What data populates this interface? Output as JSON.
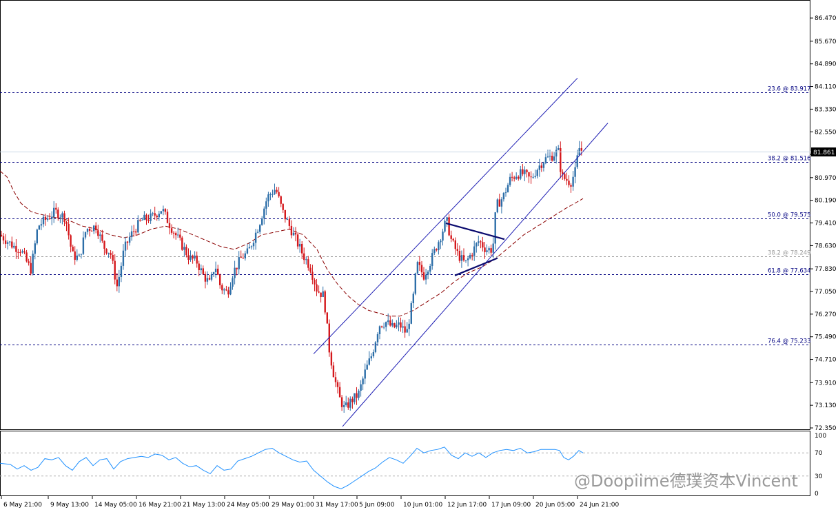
{
  "chart_data": {
    "type": "candlestick",
    "ylim": [
      72.35,
      86.9
    ],
    "y_ticks": [
      "86.470",
      "85.670",
      "84.890",
      "84.110",
      "83.330",
      "82.550",
      "81.770",
      "80.970",
      "80.190",
      "79.410",
      "78.630",
      "77.830",
      "77.050",
      "76.270",
      "75.490",
      "74.710",
      "73.910",
      "73.130",
      "72.350"
    ],
    "x_labels": [
      "6 May 21:00",
      "9 May 13:00",
      "14 May 05:00",
      "16 May 21:00",
      "21 May 13:00",
      "24 May 05:00",
      "29 May 01:00",
      "31 May 17:00",
      "5 Jun 09:00",
      "10 Jun 01:00",
      "12 Jun 17:00",
      "17 Jun 09:00",
      "20 Jun 05:00",
      "24 Jun 21:00"
    ],
    "current_price": "81.861",
    "current_price_value": 81.861,
    "fib_levels": [
      {
        "label": "23.6 @ 83.917",
        "value": 83.917
      },
      {
        "label": "38.2 @ 81.516",
        "value": 81.516
      },
      {
        "label": "50.0 @ 79.575",
        "value": 79.575
      },
      {
        "label": "38.2 @ 78.249",
        "value": 78.249
      },
      {
        "label": "61.8 @ 77.634",
        "value": 77.634
      },
      {
        "label": "76.4 @ 75.233",
        "value": 75.233
      }
    ],
    "close_path": [
      [
        0,
        79.0
      ],
      [
        10,
        78.8
      ],
      [
        20,
        78.6
      ],
      [
        30,
        78.5
      ],
      [
        40,
        78.0
      ],
      [
        45,
        77.8
      ],
      [
        55,
        79.3
      ],
      [
        65,
        79.5
      ],
      [
        80,
        79.8
      ],
      [
        95,
        79.6
      ],
      [
        105,
        78.3
      ],
      [
        115,
        78.2
      ],
      [
        125,
        79.2
      ],
      [
        140,
        79.3
      ],
      [
        150,
        78.6
      ],
      [
        160,
        78.4
      ],
      [
        170,
        77.2
      ],
      [
        180,
        78.5
      ],
      [
        190,
        79.0
      ],
      [
        205,
        79.5
      ],
      [
        220,
        79.6
      ],
      [
        235,
        79.9
      ],
      [
        245,
        79.4
      ],
      [
        255,
        79.0
      ],
      [
        265,
        78.6
      ],
      [
        275,
        78.2
      ],
      [
        285,
        78.1
      ],
      [
        295,
        77.6
      ],
      [
        305,
        77.3
      ],
      [
        312,
        78.0
      ],
      [
        320,
        77.2
      ],
      [
        330,
        77.0
      ],
      [
        338,
        77.7
      ],
      [
        350,
        78.2
      ],
      [
        360,
        78.4
      ],
      [
        375,
        79.3
      ],
      [
        388,
        80.3
      ],
      [
        400,
        80.6
      ],
      [
        410,
        79.8
      ],
      [
        420,
        79.3
      ],
      [
        430,
        78.8
      ],
      [
        440,
        78.3
      ],
      [
        450,
        77.9
      ],
      [
        460,
        77.1
      ],
      [
        470,
        76.9
      ],
      [
        478,
        75.0
      ],
      [
        485,
        74.1
      ],
      [
        492,
        73.4
      ],
      [
        500,
        73.0
      ],
      [
        510,
        73.3
      ],
      [
        520,
        73.5
      ],
      [
        530,
        74.3
      ],
      [
        540,
        74.9
      ],
      [
        550,
        75.9
      ],
      [
        560,
        76.0
      ],
      [
        570,
        75.8
      ],
      [
        580,
        75.9
      ],
      [
        590,
        75.6
      ],
      [
        600,
        76.9
      ],
      [
        605,
        78.0
      ],
      [
        615,
        77.6
      ],
      [
        625,
        78.1
      ],
      [
        635,
        78.7
      ],
      [
        648,
        79.5
      ],
      [
        655,
        78.8
      ],
      [
        665,
        78.3
      ],
      [
        675,
        78.0
      ],
      [
        685,
        78.4
      ],
      [
        695,
        78.8
      ],
      [
        705,
        78.5
      ],
      [
        715,
        78.5
      ],
      [
        720,
        80.0
      ],
      [
        730,
        80.3
      ],
      [
        740,
        80.9
      ],
      [
        750,
        81.1
      ],
      [
        760,
        81.1
      ],
      [
        770,
        80.9
      ],
      [
        780,
        81.3
      ],
      [
        790,
        81.6
      ],
      [
        800,
        81.7
      ],
      [
        810,
        81.9
      ],
      [
        815,
        81.0
      ],
      [
        822,
        80.9
      ],
      [
        828,
        80.8
      ],
      [
        835,
        81.2
      ],
      [
        840,
        82.0
      ],
      [
        846,
        81.86
      ]
    ],
    "ma_path": [
      [
        0,
        81.2
      ],
      [
        10,
        81.0
      ],
      [
        20,
        80.5
      ],
      [
        30,
        80.1
      ],
      [
        45,
        79.8
      ],
      [
        60,
        79.7
      ],
      [
        80,
        79.6
      ],
      [
        100,
        79.5
      ],
      [
        120,
        79.3
      ],
      [
        140,
        79.2
      ],
      [
        160,
        79.0
      ],
      [
        180,
        78.9
      ],
      [
        200,
        79.0
      ],
      [
        220,
        79.2
      ],
      [
        240,
        79.3
      ],
      [
        260,
        79.2
      ],
      [
        280,
        79.0
      ],
      [
        300,
        78.8
      ],
      [
        320,
        78.6
      ],
      [
        340,
        78.5
      ],
      [
        360,
        78.7
      ],
      [
        380,
        79.0
      ],
      [
        400,
        79.1
      ],
      [
        420,
        79.2
      ],
      [
        440,
        79.0
      ],
      [
        460,
        78.5
      ],
      [
        475,
        77.8
      ],
      [
        490,
        77.3
      ],
      [
        505,
        76.9
      ],
      [
        520,
        76.6
      ],
      [
        535,
        76.4
      ],
      [
        550,
        76.3
      ],
      [
        565,
        76.2
      ],
      [
        580,
        76.2
      ],
      [
        600,
        76.4
      ],
      [
        620,
        76.7
      ],
      [
        640,
        77.0
      ],
      [
        660,
        77.4
      ],
      [
        680,
        77.7
      ],
      [
        700,
        77.9
      ],
      [
        720,
        78.2
      ],
      [
        740,
        78.6
      ],
      [
        760,
        79.0
      ],
      [
        780,
        79.3
      ],
      [
        800,
        79.6
      ],
      [
        820,
        79.9
      ],
      [
        835,
        80.1
      ],
      [
        846,
        80.25
      ]
    ],
    "channel": {
      "upper": [
        [
          455,
          74.9
        ],
        [
          838,
          84.4
        ]
      ],
      "lower": [
        [
          497,
          72.4
        ],
        [
          882,
          82.85
        ]
      ]
    },
    "triangle": [
      [
        [
          647,
          79.4
        ],
        [
          732,
          78.85
        ]
      ],
      [
        [
          660,
          77.6
        ],
        [
          722,
          78.2
        ]
      ]
    ],
    "rsi": {
      "levels": [
        "100",
        "70",
        "30",
        "0"
      ],
      "path": [
        [
          0,
          52
        ],
        [
          15,
          50
        ],
        [
          25,
          42
        ],
        [
          35,
          48
        ],
        [
          45,
          40
        ],
        [
          55,
          45
        ],
        [
          65,
          60
        ],
        [
          75,
          58
        ],
        [
          85,
          62
        ],
        [
          95,
          48
        ],
        [
          105,
          40
        ],
        [
          115,
          55
        ],
        [
          125,
          62
        ],
        [
          135,
          48
        ],
        [
          145,
          58
        ],
        [
          155,
          60
        ],
        [
          165,
          42
        ],
        [
          175,
          55
        ],
        [
          185,
          60
        ],
        [
          195,
          62
        ],
        [
          205,
          64
        ],
        [
          215,
          62
        ],
        [
          225,
          68
        ],
        [
          235,
          66
        ],
        [
          245,
          58
        ],
        [
          255,
          62
        ],
        [
          265,
          52
        ],
        [
          275,
          46
        ],
        [
          285,
          48
        ],
        [
          295,
          40
        ],
        [
          305,
          34
        ],
        [
          315,
          48
        ],
        [
          325,
          40
        ],
        [
          335,
          42
        ],
        [
          345,
          56
        ],
        [
          355,
          60
        ],
        [
          365,
          64
        ],
        [
          375,
          70
        ],
        [
          385,
          76
        ],
        [
          395,
          78
        ],
        [
          405,
          70
        ],
        [
          415,
          64
        ],
        [
          425,
          58
        ],
        [
          435,
          54
        ],
        [
          445,
          56
        ],
        [
          455,
          40
        ],
        [
          465,
          30
        ],
        [
          475,
          20
        ],
        [
          485,
          12
        ],
        [
          495,
          8
        ],
        [
          505,
          14
        ],
        [
          515,
          22
        ],
        [
          525,
          30
        ],
        [
          535,
          38
        ],
        [
          545,
          44
        ],
        [
          555,
          54
        ],
        [
          565,
          62
        ],
        [
          575,
          58
        ],
        [
          585,
          52
        ],
        [
          595,
          64
        ],
        [
          605,
          78
        ],
        [
          615,
          70
        ],
        [
          625,
          74
        ],
        [
          635,
          76
        ],
        [
          645,
          80
        ],
        [
          655,
          66
        ],
        [
          665,
          60
        ],
        [
          675,
          70
        ],
        [
          685,
          64
        ],
        [
          695,
          70
        ],
        [
          705,
          62
        ],
        [
          715,
          70
        ],
        [
          725,
          74
        ],
        [
          735,
          76
        ],
        [
          745,
          74
        ],
        [
          755,
          78
        ],
        [
          765,
          70
        ],
        [
          775,
          72
        ],
        [
          785,
          76
        ],
        [
          795,
          76
        ],
        [
          805,
          76
        ],
        [
          812,
          74
        ],
        [
          818,
          62
        ],
        [
          825,
          58
        ],
        [
          832,
          64
        ],
        [
          840,
          74
        ],
        [
          846,
          70
        ]
      ]
    }
  },
  "watermark": "@Doopiime德璞资本Vincent"
}
